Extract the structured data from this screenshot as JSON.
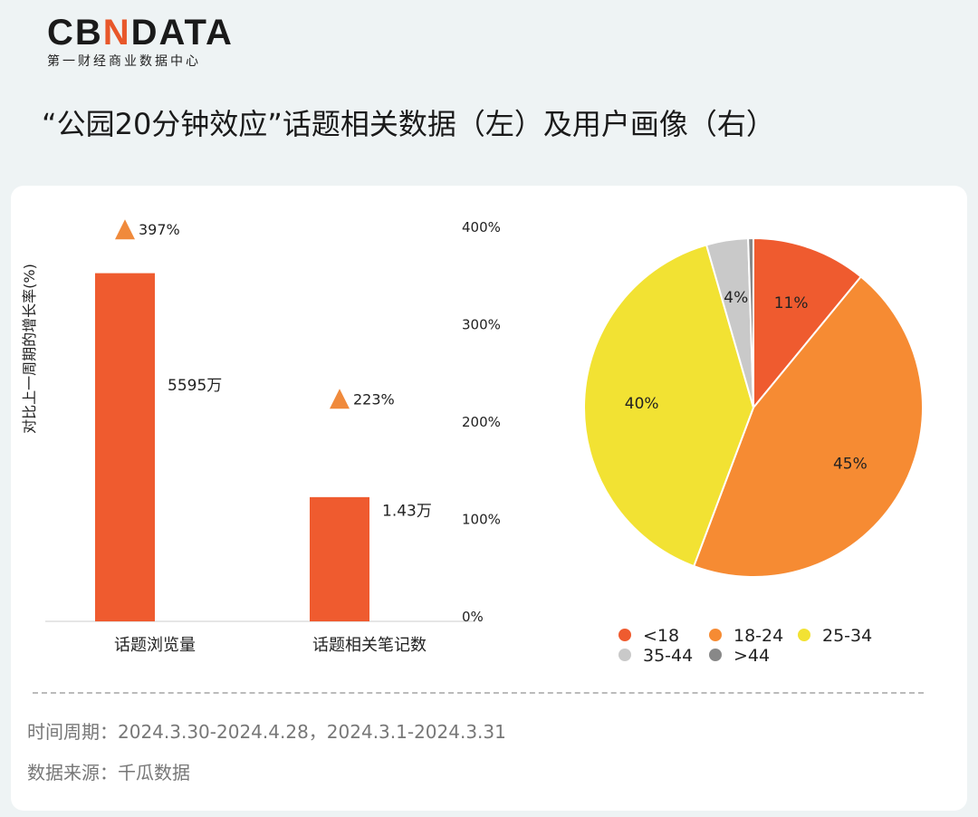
{
  "logo": {
    "brand_prefix": "CB",
    "brand_mark": "N",
    "brand_suffix": "DATA",
    "tagline": "第一财经商业数据中心"
  },
  "title": "“公园20分钟效应”话题相关数据（左）及用户画像（右）",
  "chart_data": [
    {
      "type": "bar",
      "title": "话题相关数据",
      "categories": [
        "话题浏览量",
        "话题相关笔记数"
      ],
      "bar_labels": [
        "5595万",
        "1.43万"
      ],
      "bar_plot_level": [
        352,
        122
      ],
      "growth_rate": [
        397,
        223
      ],
      "growth_labels": [
        "397%",
        "223%"
      ],
      "ylabel": "对比上一周期的增长率(%)",
      "ylim": [
        0,
        400
      ],
      "yticks": [
        "0%",
        "100%",
        "200%",
        "300%",
        "400%"
      ],
      "colors": {
        "bar": "#ef5b2f",
        "marker": "#f08a3c"
      }
    },
    {
      "type": "pie",
      "title": "用户画像",
      "categories": [
        "<18",
        "18-24",
        "25-34",
        "35-44",
        ">44"
      ],
      "values": [
        11,
        45,
        40,
        4,
        0.5
      ],
      "labels": [
        "11%",
        "45%",
        "40%",
        "4%",
        ""
      ],
      "colors": [
        "#ef5b2f",
        "#f68b33",
        "#f2e233",
        "#c9c9c9",
        "#888888"
      ],
      "legend": "bottom"
    }
  ],
  "footer": {
    "period": "时间周期：2024.3.30-2024.4.28，2024.3.1-2024.3.31",
    "source": "数据来源：千瓜数据"
  }
}
